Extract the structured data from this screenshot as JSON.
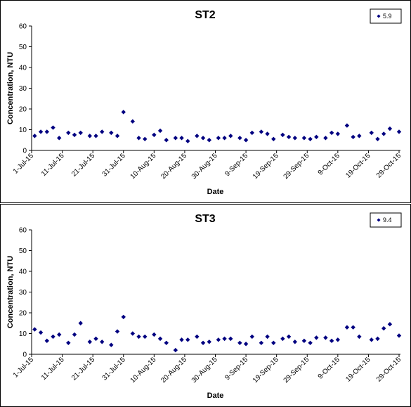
{
  "chart_data": [
    {
      "type": "scatter",
      "title": "ST2",
      "x_label": "Date",
      "y_label": "Concentration, NTU",
      "legend": "top-right",
      "x": [
        "2015-07-02",
        "2015-07-04",
        "2015-07-06",
        "2015-07-08",
        "2015-07-10",
        "2015-07-13",
        "2015-07-15",
        "2015-07-17",
        "2015-07-20",
        "2015-07-22",
        "2015-07-24",
        "2015-07-27",
        "2015-07-29",
        "2015-07-31",
        "2015-08-03",
        "2015-08-05",
        "2015-08-07",
        "2015-08-10",
        "2015-08-12",
        "2015-08-14",
        "2015-08-17",
        "2015-08-19",
        "2015-08-21",
        "2015-08-24",
        "2015-08-26",
        "2015-08-28",
        "2015-08-31",
        "2015-09-02",
        "2015-09-04",
        "2015-09-07",
        "2015-09-09",
        "2015-09-11",
        "2015-09-14",
        "2015-09-16",
        "2015-09-18",
        "2015-09-21",
        "2015-09-23",
        "2015-09-25",
        "2015-09-28",
        "2015-09-30",
        "2015-10-02",
        "2015-10-05",
        "2015-10-07",
        "2015-10-09",
        "2015-10-12",
        "2015-10-14",
        "2015-10-16",
        "2015-10-20",
        "2015-10-22",
        "2015-10-24",
        "2015-10-26",
        "2015-10-29"
      ],
      "series": [
        {
          "name": "5.9",
          "color": "#000080",
          "values": [
            7,
            9,
            9,
            11,
            6,
            8.5,
            7.5,
            8.5,
            7,
            7,
            9,
            8.5,
            7,
            18.5,
            14,
            6,
            5.5,
            7.5,
            9.5,
            5,
            6,
            6,
            4.5,
            7,
            6,
            5,
            6,
            6,
            7,
            6,
            5,
            8.5,
            9,
            8,
            5.5,
            7.5,
            6.5,
            6,
            6,
            5.5,
            6.5,
            6,
            8.5,
            8,
            12,
            6.5,
            7,
            8.5,
            5.5,
            8,
            10.5,
            9
          ]
        }
      ],
      "xlim": [
        "2015-07-01",
        "2015-10-29"
      ],
      "xticks": [
        {
          "value": "2015-07-01",
          "label": "1-Jul-15"
        },
        {
          "value": "2015-07-11",
          "label": "11-Jul-15"
        },
        {
          "value": "2015-07-21",
          "label": "21-Jul-15"
        },
        {
          "value": "2015-07-31",
          "label": "31-Jul-15"
        },
        {
          "value": "2015-08-10",
          "label": "10-Aug-15"
        },
        {
          "value": "2015-08-20",
          "label": "20-Aug-15"
        },
        {
          "value": "2015-08-30",
          "label": "30-Aug-15"
        },
        {
          "value": "2015-09-09",
          "label": "9-Sep-15"
        },
        {
          "value": "2015-09-19",
          "label": "19-Sep-15"
        },
        {
          "value": "2015-09-29",
          "label": "29-Sep-15"
        },
        {
          "value": "2015-10-09",
          "label": "9-Oct-15"
        },
        {
          "value": "2015-10-19",
          "label": "19-Oct-15"
        },
        {
          "value": "2015-10-29",
          "label": "29-Oct-15"
        }
      ],
      "ylim": [
        0,
        60
      ],
      "yticks": [
        0,
        10,
        20,
        30,
        40,
        50,
        60
      ],
      "grid": false
    },
    {
      "type": "scatter",
      "title": "ST3",
      "x_label": "Date",
      "y_label": "Concentration, NTU",
      "legend": "top-right",
      "x": [
        "2015-07-02",
        "2015-07-04",
        "2015-07-06",
        "2015-07-08",
        "2015-07-10",
        "2015-07-13",
        "2015-07-15",
        "2015-07-17",
        "2015-07-20",
        "2015-07-22",
        "2015-07-24",
        "2015-07-27",
        "2015-07-29",
        "2015-07-31",
        "2015-08-03",
        "2015-08-05",
        "2015-08-07",
        "2015-08-10",
        "2015-08-12",
        "2015-08-14",
        "2015-08-17",
        "2015-08-19",
        "2015-08-21",
        "2015-08-24",
        "2015-08-26",
        "2015-08-28",
        "2015-08-31",
        "2015-09-02",
        "2015-09-04",
        "2015-09-07",
        "2015-09-09",
        "2015-09-11",
        "2015-09-14",
        "2015-09-16",
        "2015-09-18",
        "2015-09-21",
        "2015-09-23",
        "2015-09-25",
        "2015-09-28",
        "2015-09-30",
        "2015-10-02",
        "2015-10-05",
        "2015-10-07",
        "2015-10-09",
        "2015-10-12",
        "2015-10-14",
        "2015-10-16",
        "2015-10-20",
        "2015-10-22",
        "2015-10-24",
        "2015-10-26",
        "2015-10-29"
      ],
      "series": [
        {
          "name": "9.4",
          "color": "#000080",
          "values": [
            12,
            10.5,
            6.5,
            8.5,
            9.5,
            5.5,
            9.5,
            15,
            6,
            7.5,
            6,
            4.5,
            11,
            18,
            10,
            8.5,
            8.5,
            9.5,
            7.5,
            5.5,
            2,
            7,
            7,
            8.5,
            5.5,
            6,
            7,
            7.5,
            7.5,
            5.5,
            5,
            8.5,
            5.5,
            8.5,
            5.5,
            7.5,
            8.5,
            6,
            6.5,
            5.5,
            8,
            8,
            6.5,
            7,
            13,
            13,
            8.5,
            7,
            7.5,
            12.5,
            14.5,
            9
          ]
        }
      ],
      "xlim": [
        "2015-07-01",
        "2015-10-29"
      ],
      "xticks": [
        {
          "value": "2015-07-01",
          "label": "1-Jul-15"
        },
        {
          "value": "2015-07-11",
          "label": "11-Jul-15"
        },
        {
          "value": "2015-07-21",
          "label": "21-Jul-15"
        },
        {
          "value": "2015-07-31",
          "label": "31-Jul-15"
        },
        {
          "value": "2015-08-10",
          "label": "10-Aug-15"
        },
        {
          "value": "2015-08-20",
          "label": "20-Aug-15"
        },
        {
          "value": "2015-08-30",
          "label": "30-Aug-15"
        },
        {
          "value": "2015-09-09",
          "label": "9-Sep-15"
        },
        {
          "value": "2015-09-19",
          "label": "19-Sep-15"
        },
        {
          "value": "2015-09-29",
          "label": "29-Sep-15"
        },
        {
          "value": "2015-10-09",
          "label": "9-Oct-15"
        },
        {
          "value": "2015-10-19",
          "label": "19-Oct-15"
        },
        {
          "value": "2015-10-29",
          "label": "29-Oct-15"
        }
      ],
      "ylim": [
        0,
        60
      ],
      "yticks": [
        0,
        10,
        20,
        30,
        40,
        50,
        60
      ],
      "grid": false
    }
  ]
}
